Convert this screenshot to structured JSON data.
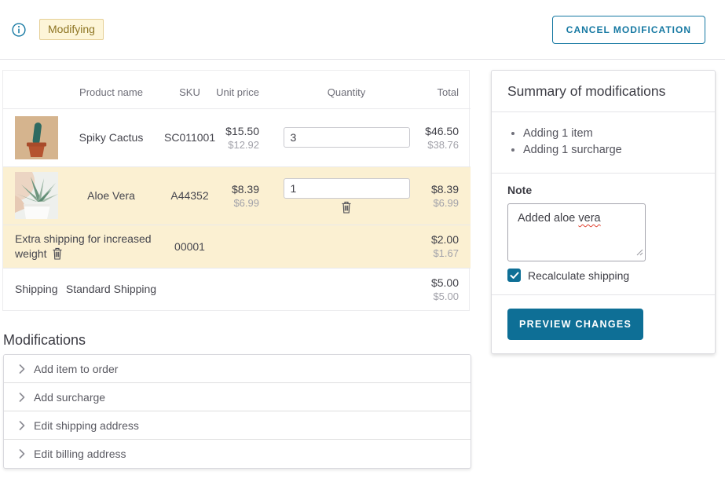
{
  "header": {
    "status_badge": "Modifying",
    "cancel_button": "CANCEL MODIFICATION"
  },
  "table": {
    "headers": {
      "product_name": "Product name",
      "sku": "SKU",
      "unit_price": "Unit price",
      "quantity": "Quantity",
      "total": "Total"
    },
    "rows": [
      {
        "name": "Spiky Cactus",
        "sku": "SC011001",
        "unit_price": "$15.50",
        "unit_price_secondary": "$12.92",
        "quantity": "3",
        "total": "$46.50",
        "total_secondary": "$38.76"
      },
      {
        "name": "Aloe Vera",
        "sku": "A44352",
        "unit_price": "$8.39",
        "unit_price_secondary": "$6.99",
        "quantity": "1",
        "total": "$8.39",
        "total_secondary": "$6.99"
      }
    ],
    "surcharge_row": {
      "label": "Extra shipping for increased weight",
      "sku": "00001",
      "total": "$2.00",
      "total_secondary": "$1.67"
    },
    "shipping_row": {
      "label": "Shipping",
      "method": "Standard Shipping",
      "total": "$5.00",
      "total_secondary": "$5.00"
    }
  },
  "summary": {
    "title": "Summary of modifications",
    "items": [
      "Adding 1 item",
      "Adding 1 surcharge"
    ],
    "note_label": "Note",
    "note_value": "Added aloe vera",
    "recalculate_label": "Recalculate shipping",
    "recalculate_checked": true,
    "preview_button": "PREVIEW CHANGES"
  },
  "modifications": {
    "title": "Modifications",
    "items": [
      "Add item to order",
      "Add surcharge",
      "Edit shipping address",
      "Edit billing address"
    ]
  },
  "colors": {
    "accent": "#0e6f96",
    "row_highlight": "#fbf0d2",
    "badge_bg": "#fdf5d8",
    "badge_border": "#e5cf96",
    "badge_text": "#8e7523"
  }
}
